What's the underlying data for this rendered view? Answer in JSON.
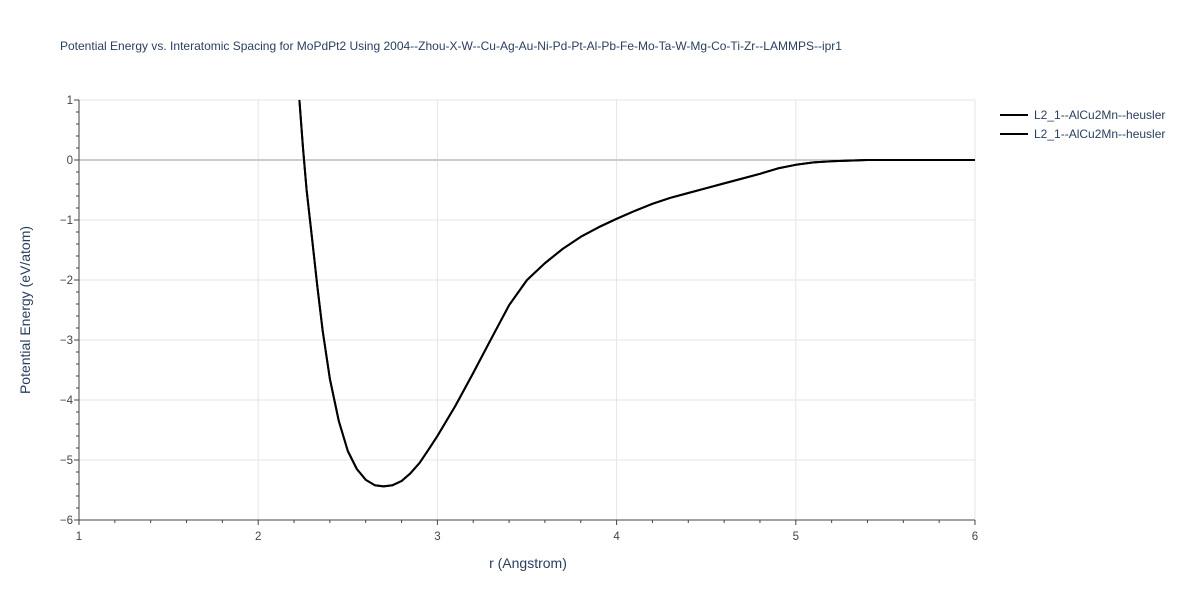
{
  "chart_data": {
    "type": "line",
    "title": "Potential Energy vs. Interatomic Spacing for MoPdPt2 Using 2004--Zhou-X-W--Cu-Ag-Au-Ni-Pd-Pt-Al-Pb-Fe-Mo-Ta-W-Mg-Co-Ti-Zr--LAMMPS--ipr1",
    "xlabel": "r (Angstrom)",
    "ylabel": "Potential Energy (eV/atom)",
    "xlim": [
      1,
      6
    ],
    "ylim": [
      -6,
      1
    ],
    "xticks": [
      1,
      2,
      3,
      4,
      5,
      6
    ],
    "yticks": [
      1,
      0,
      -1,
      -2,
      -3,
      -4,
      -5,
      -6
    ],
    "ytick_labels": [
      "1",
      "0",
      "−1",
      "−2",
      "−3",
      "−4",
      "−5",
      "−6"
    ],
    "grid": true,
    "legend_position": "top-right",
    "line_color": "#000000",
    "series": [
      {
        "name": "L2_1--AlCu2Mn--heusler",
        "x": [
          2.23,
          2.25,
          2.27,
          2.3,
          2.33,
          2.36,
          2.4,
          2.45,
          2.5,
          2.55,
          2.6,
          2.65,
          2.7,
          2.75,
          2.8,
          2.85,
          2.9,
          2.95,
          3.0,
          3.1,
          3.2,
          3.3,
          3.4,
          3.5,
          3.6,
          3.7,
          3.8,
          3.9,
          4.0,
          4.1,
          4.2,
          4.3,
          4.4,
          4.5,
          4.6,
          4.7,
          4.8,
          4.9,
          5.0,
          5.1,
          5.2,
          5.3,
          5.4,
          5.5,
          5.6,
          5.8,
          6.0
        ],
        "y": [
          1.0,
          0.2,
          -0.5,
          -1.3,
          -2.1,
          -2.85,
          -3.65,
          -4.35,
          -4.85,
          -5.15,
          -5.33,
          -5.42,
          -5.44,
          -5.42,
          -5.35,
          -5.22,
          -5.05,
          -4.83,
          -4.6,
          -4.1,
          -3.55,
          -2.98,
          -2.42,
          -2.0,
          -1.72,
          -1.48,
          -1.28,
          -1.12,
          -0.98,
          -0.85,
          -0.73,
          -0.63,
          -0.55,
          -0.47,
          -0.39,
          -0.31,
          -0.23,
          -0.14,
          -0.08,
          -0.04,
          -0.02,
          -0.01,
          0.0,
          0.0,
          0.0,
          0.0,
          0.0
        ]
      },
      {
        "name": "L2_1--AlCu2Mn--heusler",
        "x": [
          2.23,
          2.25,
          2.27,
          2.3,
          2.33,
          2.36,
          2.4,
          2.45,
          2.5,
          2.55,
          2.6,
          2.65,
          2.7,
          2.75,
          2.8,
          2.85,
          2.9,
          2.95,
          3.0,
          3.1,
          3.2,
          3.3,
          3.4,
          3.5,
          3.6,
          3.7,
          3.8,
          3.9,
          4.0,
          4.1,
          4.2,
          4.3,
          4.4,
          4.5,
          4.6,
          4.7,
          4.8,
          4.9,
          5.0,
          5.1,
          5.2,
          5.3,
          5.4,
          5.5,
          5.6,
          5.8,
          6.0
        ],
        "y": [
          1.0,
          0.2,
          -0.5,
          -1.3,
          -2.1,
          -2.85,
          -3.65,
          -4.35,
          -4.85,
          -5.15,
          -5.33,
          -5.42,
          -5.44,
          -5.42,
          -5.35,
          -5.22,
          -5.05,
          -4.83,
          -4.6,
          -4.1,
          -3.55,
          -2.98,
          -2.42,
          -2.0,
          -1.72,
          -1.48,
          -1.28,
          -1.12,
          -0.98,
          -0.85,
          -0.73,
          -0.63,
          -0.55,
          -0.47,
          -0.39,
          -0.31,
          -0.23,
          -0.14,
          -0.08,
          -0.04,
          -0.02,
          -0.01,
          0.0,
          0.0,
          0.0,
          0.0,
          0.0
        ]
      }
    ]
  }
}
